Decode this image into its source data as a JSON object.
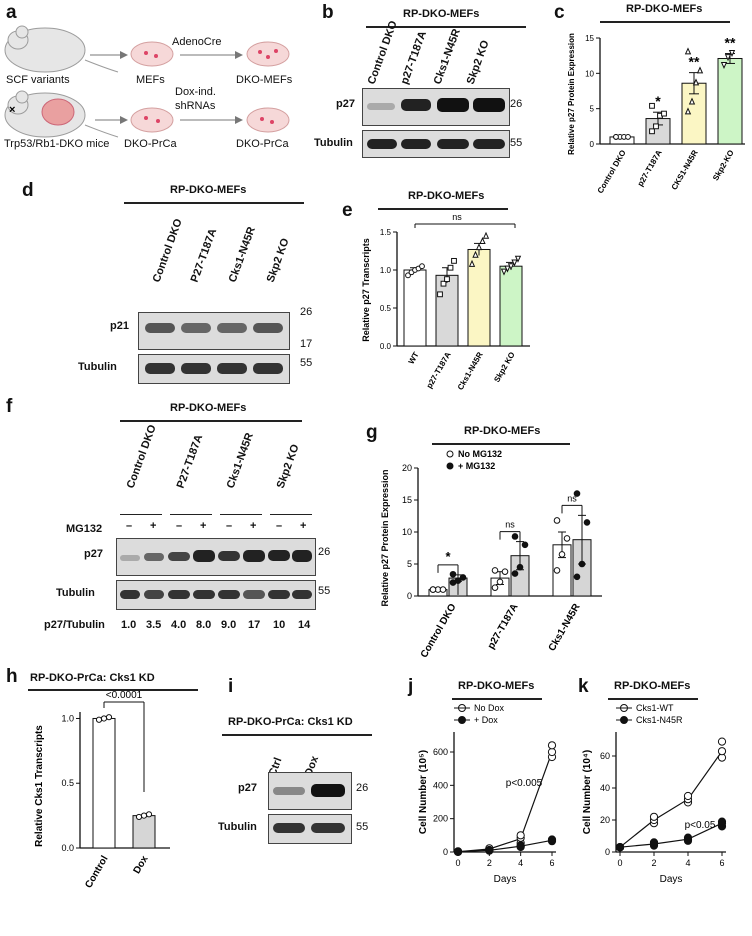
{
  "panels": {
    "a": {
      "label": "a",
      "scf_variants": "SCF variants",
      "mefs": "MEFs",
      "adenocre": "AdenoCre",
      "dko_mefs": "DKO-MEFs",
      "dox_ind": "Dox-ind.",
      "shrnas": "shRNAs",
      "dko_prca_1": "DKO-PrCa",
      "dko_prca_2": "DKO-PrCa",
      "mice": "Trp53/Rb1-DKO mice"
    },
    "b": {
      "label": "b",
      "header": "RP-DKO-MEFs",
      "lanes": [
        "Control DKO",
        "p27-T187A",
        "Cks1-N45R",
        "Skp2 KO"
      ],
      "rows": [
        "p27",
        "Tubulin"
      ],
      "mw": [
        "26",
        "55"
      ]
    },
    "c": {
      "label": "c",
      "header": "RP-DKO-MEFs",
      "ylabel": "Relative p27 Protein Expression",
      "yticks": [
        "0",
        "5",
        "10",
        "15"
      ],
      "categories": [
        "Control DKO",
        "p27-T187A",
        "CKS1-N45R",
        "Skp2-KO"
      ],
      "stars": [
        "",
        "*",
        "**",
        "**"
      ]
    },
    "d": {
      "label": "d",
      "header": "RP-DKO-MEFs",
      "lanes": [
        "Control DKO",
        "P27-T187A",
        "Cks1-N45R",
        "Skp2 KO"
      ],
      "rows": [
        "p21",
        "Tubulin"
      ],
      "mw": [
        "26",
        "17",
        "55"
      ]
    },
    "e": {
      "label": "e",
      "header": "RP-DKO-MEFs",
      "ns": "ns",
      "ylabel": "Relative p27 Transcripts",
      "yticks": [
        "0.0",
        "0.5",
        "1.0",
        "1.5"
      ],
      "categories": [
        "WT",
        "p27-T187A",
        "Cks1-N45R",
        "Skp2 KO"
      ]
    },
    "f": {
      "label": "f",
      "header": "RP-DKO-MEFs",
      "lanes": [
        "Control DKO",
        "P27-T187A",
        "Cks1-N45R",
        "Skp2 KO"
      ],
      "mg132": "MG132",
      "signs": [
        "–",
        "+",
        "–",
        "+",
        "–",
        "+",
        "–",
        "+"
      ],
      "rows": [
        "p27",
        "Tubulin"
      ],
      "mw": [
        "26",
        "55"
      ],
      "ratio_label": "p27/Tubulin",
      "ratios": [
        "1.0",
        "3.5",
        "4.0",
        "8.0",
        "9.0",
        "17",
        "10",
        "14"
      ]
    },
    "g": {
      "label": "g",
      "header": "RP-DKO-MEFs",
      "legend": [
        "No MG132",
        "+ MG132"
      ],
      "ylabel": "Relative p27 Protein Expression",
      "yticks": [
        "0",
        "5",
        "10",
        "15",
        "20"
      ],
      "categories": [
        "Control DKO",
        "p27-T187A",
        "Cks1-N45R"
      ],
      "sig": [
        "*",
        "ns",
        "ns"
      ]
    },
    "h": {
      "label": "h",
      "header": "RP-DKO-PrCa: Cks1 KD",
      "pval": "<0.0001",
      "ylabel": "Relative Cks1 Transcripts",
      "yticks": [
        "0.0",
        "0.5",
        "1.0"
      ],
      "categories": [
        "Control",
        "Dox"
      ]
    },
    "i": {
      "label": "i",
      "header": "RP-DKO-PrCa: Cks1 KD",
      "lanes": [
        "Ctrl",
        "Dox"
      ],
      "rows": [
        "p27",
        "Tubulin"
      ],
      "mw": [
        "26",
        "55"
      ]
    },
    "j": {
      "label": "j",
      "header": "RP-DKO-MEFs",
      "legend": [
        "No Dox",
        "+ Dox"
      ],
      "ylabel": "Cell Number (10⁵)",
      "xlabel": "Days",
      "yticks": [
        "0",
        "200",
        "400",
        "600"
      ],
      "xticks": [
        "0",
        "2",
        "4",
        "6"
      ],
      "pval": "p<0.005"
    },
    "k": {
      "label": "k",
      "header": "RP-DKO-MEFs",
      "legend": [
        "Cks1-WT",
        "Cks1-N45R"
      ],
      "ylabel": "Cell Number (10⁴)",
      "xlabel": "Days",
      "yticks": [
        "0",
        "20",
        "40",
        "60"
      ],
      "xticks": [
        "0",
        "2",
        "4",
        "6"
      ],
      "pval": "p<0.05"
    }
  },
  "chart_data": [
    {
      "type": "bar",
      "panel": "c",
      "ylabel": "Relative p27 Protein Expression",
      "categories": [
        "Control DKO",
        "p27-T187A",
        "CKS1-N45R",
        "Skp2-KO"
      ],
      "values": [
        1.0,
        3.6,
        8.6,
        12.1
      ],
      "errors": [
        0.0,
        0.9,
        1.5,
        0.7
      ],
      "points": [
        [
          1,
          1,
          1,
          1,
          1
        ],
        [
          1.8,
          2.5,
          4.0,
          4.3,
          5.4
        ],
        [
          4.6,
          6.0,
          8.7,
          10.4,
          13.1
        ],
        [
          11.2,
          12.3,
          12.9
        ]
      ],
      "colors": [
        "#ffffff",
        "#d9d9d9",
        "#fbf6c4",
        "#cdf5c6"
      ],
      "ylim": [
        0,
        15
      ],
      "significance": [
        "",
        "*",
        "**",
        "**"
      ]
    },
    {
      "type": "bar",
      "panel": "e",
      "ylabel": "Relative p27 Transcripts",
      "categories": [
        "WT",
        "p27-T187A",
        "Cks1-N45R",
        "Skp2 KO"
      ],
      "values": [
        1.0,
        0.93,
        1.27,
        1.05
      ],
      "errors": [
        0.03,
        0.1,
        0.08,
        0.05
      ],
      "points": [
        [
          0.93,
          0.97,
          1.0,
          1.02,
          1.05
        ],
        [
          0.68,
          0.82,
          0.88,
          1.03,
          1.12
        ],
        [
          1.08,
          1.2,
          1.3,
          1.38,
          1.45
        ],
        [
          0.98,
          1.02,
          1.05,
          1.1,
          1.15
        ]
      ],
      "colors": [
        "#ffffff",
        "#d9d9d9",
        "#fbf6c4",
        "#cdf5c6"
      ],
      "ylim": [
        0,
        1.5
      ],
      "significance": "ns"
    },
    {
      "type": "bar",
      "panel": "g",
      "ylabel": "Relative p27 Protein Expression",
      "categories": [
        "Control DKO",
        "p27-T187A",
        "Cks1-N45R"
      ],
      "series": [
        {
          "name": "No MG132",
          "values": [
            1.0,
            2.8,
            8.0
          ],
          "errors": [
            0.0,
            1.0,
            2.0
          ],
          "points": [
            [
              1,
              1,
              1,
              1
            ],
            [
              1.3,
              2.2,
              3.8,
              4.0
            ],
            [
              4.0,
              6.5,
              9.0,
              11.8
            ]
          ]
        },
        {
          "name": "+ MG132",
          "values": [
            2.8,
            6.3,
            8.8
          ],
          "errors": [
            0.5,
            2.2,
            3.8
          ],
          "points": [
            [
              2.1,
              2.4,
              2.9,
              3.4
            ],
            [
              3.5,
              4.5,
              8.0,
              9.3
            ],
            [
              3.0,
              5.0,
              11.5,
              16.0
            ]
          ]
        }
      ],
      "ylim": [
        0,
        20
      ],
      "significance": [
        "*",
        "ns",
        "ns"
      ]
    },
    {
      "type": "bar",
      "panel": "h",
      "ylabel": "Relative Cks1 Transcripts",
      "categories": [
        "Control",
        "Dox"
      ],
      "values": [
        1.0,
        0.25
      ],
      "points": [
        [
          0.99,
          1.0,
          1.01
        ],
        [
          0.24,
          0.25,
          0.26
        ]
      ],
      "ylim": [
        0,
        1.05
      ],
      "pvalue": "<0.0001"
    },
    {
      "type": "line",
      "panel": "j",
      "xlabel": "Days",
      "ylabel": "Cell Number (10⁵)",
      "series": [
        {
          "name": "No Dox",
          "x": [
            0,
            2,
            4,
            6
          ],
          "y": [
            2,
            18,
            80,
            600
          ],
          "points": [
            [
              0,
              0,
              0
            ],
            [
              2,
              2,
              2
            ],
            [
              4,
              4,
              4
            ],
            [
              6,
              6,
              6
            ]
          ],
          "points_y": [
            [
              1,
              2,
              4
            ],
            [
              15,
              18,
              22
            ],
            [
              55,
              85,
              100
            ],
            [
              570,
              600,
              640
            ]
          ]
        },
        {
          "name": "+ Dox",
          "x": [
            0,
            2,
            4,
            6
          ],
          "y": [
            2,
            10,
            35,
            70
          ],
          "points": [
            [
              0,
              0,
              0
            ],
            [
              2,
              2,
              2
            ],
            [
              4,
              4,
              4
            ],
            [
              6,
              6,
              6
            ]
          ],
          "points_y": [
            [
              1,
              2,
              3
            ],
            [
              8,
              10,
              12
            ],
            [
              30,
              35,
              40
            ],
            [
              65,
              70,
              75
            ]
          ]
        }
      ],
      "ylim": [
        0,
        720
      ],
      "xlim": [
        0,
        6
      ],
      "pvalue": "p<0.005"
    },
    {
      "type": "line",
      "panel": "k",
      "xlabel": "Days",
      "ylabel": "Cell Number (10⁴)",
      "series": [
        {
          "name": "Cks1-WT",
          "x": [
            0,
            2,
            4,
            6
          ],
          "y": [
            3,
            20,
            33,
            63
          ],
          "points": [
            [
              0,
              0,
              0
            ],
            [
              2,
              2,
              2
            ],
            [
              4,
              4,
              4
            ],
            [
              6,
              6,
              6
            ]
          ],
          "points_y": [
            [
              3,
              3,
              3
            ],
            [
              18,
              20,
              22
            ],
            [
              31,
              33,
              35
            ],
            [
              59,
              63,
              69
            ]
          ]
        },
        {
          "name": "Cks1-N45R",
          "x": [
            0,
            2,
            4,
            6
          ],
          "y": [
            3,
            5,
            8,
            18
          ],
          "points": [
            [
              0,
              0,
              0
            ],
            [
              2,
              2,
              2
            ],
            [
              4,
              4,
              4
            ],
            [
              6,
              6,
              6
            ]
          ],
          "points_y": [
            [
              3,
              3,
              3
            ],
            [
              4,
              5,
              6
            ],
            [
              7,
              8,
              9
            ],
            [
              16,
              18,
              19
            ]
          ]
        }
      ],
      "ylim": [
        0,
        75
      ],
      "xlim": [
        0,
        6
      ],
      "pvalue": "p<0.05"
    }
  ]
}
